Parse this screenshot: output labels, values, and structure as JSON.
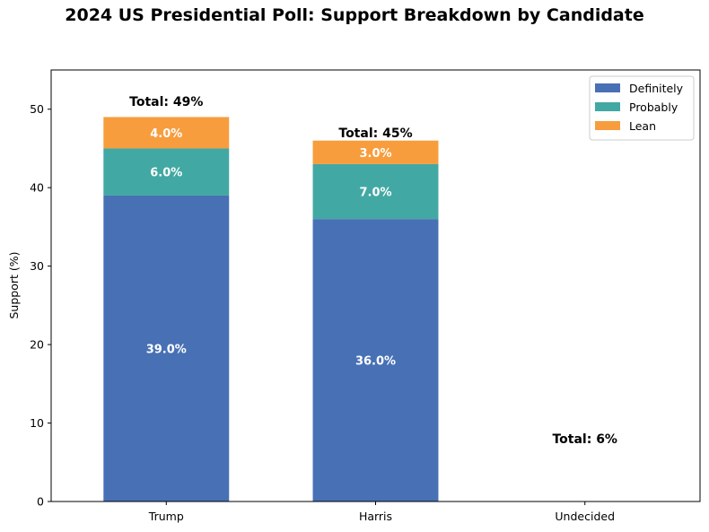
{
  "chart_data": {
    "type": "bar",
    "stacked": true,
    "title": "2024 US Presidential Poll: Support Breakdown by Candidate",
    "xlabel": "",
    "ylabel": "Support (%)",
    "ylim": [
      0,
      55
    ],
    "yticks": [
      "0",
      "10",
      "20",
      "30",
      "40",
      "50"
    ],
    "categories": [
      "Trump",
      "Harris",
      "Undecided"
    ],
    "series": [
      {
        "name": "Definitely",
        "color": "#4870b5",
        "values": [
          39.0,
          36.0,
          0
        ],
        "labels": [
          "39.0%",
          "36.0%",
          ""
        ]
      },
      {
        "name": "Probably",
        "color": "#42a8a3",
        "values": [
          6.0,
          7.0,
          0
        ],
        "labels": [
          "6.0%",
          "7.0%",
          ""
        ]
      },
      {
        "name": "Lean",
        "color": "#f79d3e",
        "values": [
          4.0,
          3.0,
          0
        ],
        "labels": [
          "4.0%",
          "3.0%",
          ""
        ]
      }
    ],
    "totals": [
      {
        "label": "Total: 49%",
        "value": 51.0
      },
      {
        "label": "Total: 45%",
        "value": 47.0
      },
      {
        "label": "Total: 6%",
        "value": 8.0
      }
    ],
    "legend_position": "top-right",
    "grid": false
  }
}
